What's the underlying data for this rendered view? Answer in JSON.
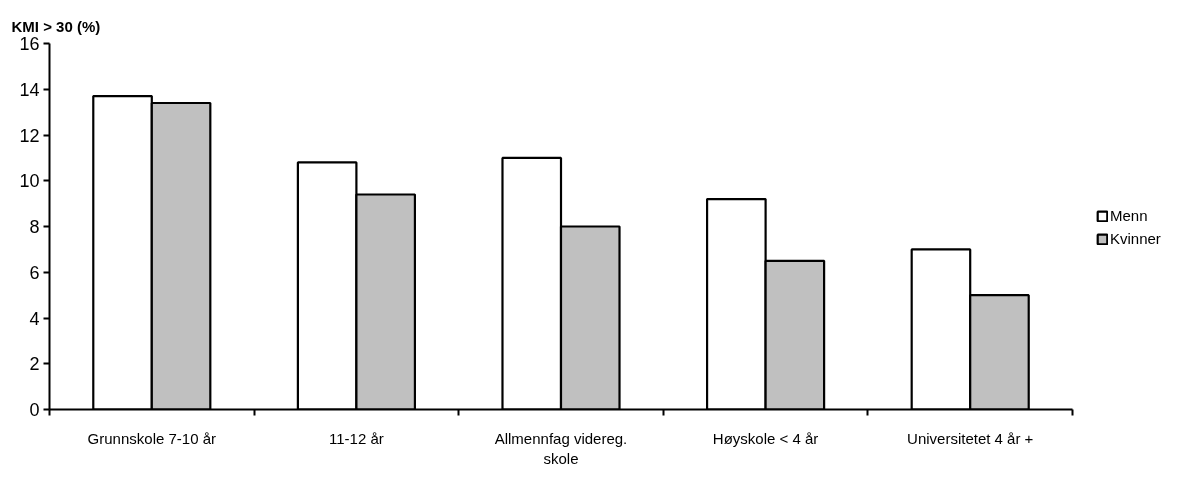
{
  "chart_data": {
    "type": "bar",
    "ylabel": "KMI  > 30 (%)",
    "categories": [
      "Grunnskole 7-10 år",
      "11-12 år",
      "Allmennfag videreg. skole",
      "Høyskole < 4 år",
      "Universitetet 4 år +"
    ],
    "series": [
      {
        "name": "Menn",
        "color": "#ffffff",
        "values": [
          13.7,
          10.8,
          11.0,
          9.2,
          7.0
        ]
      },
      {
        "name": "Kvinner",
        "color": "#c0c0c0",
        "values": [
          13.4,
          9.4,
          8.0,
          6.5,
          5.0
        ]
      }
    ],
    "ylim": [
      0,
      16
    ],
    "yticks": [
      0,
      2,
      4,
      6,
      8,
      10,
      12,
      14,
      16
    ],
    "legend": "right"
  }
}
